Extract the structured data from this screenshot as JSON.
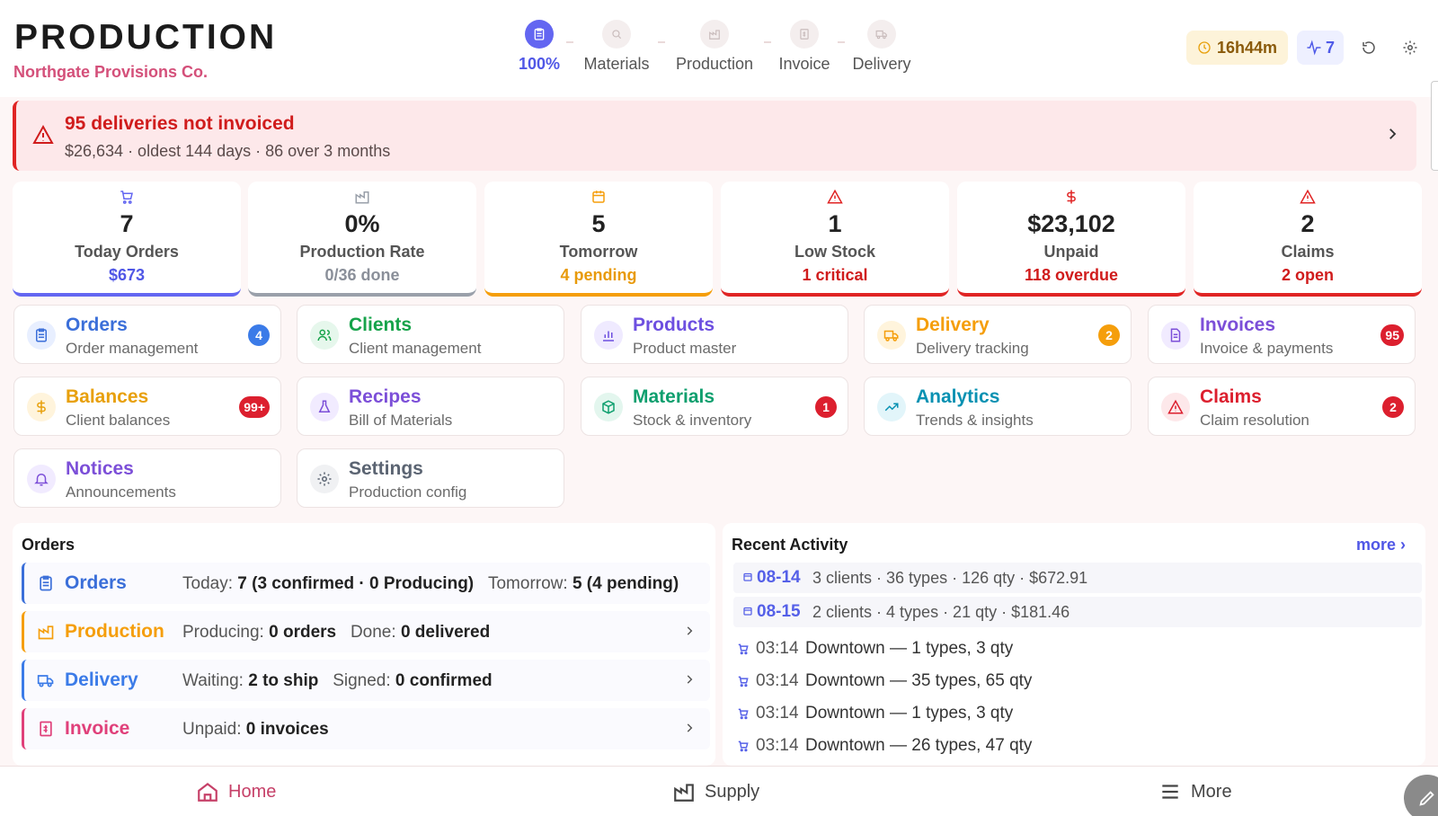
{
  "header": {
    "title": "PRODUCTION",
    "company": "Northgate Provisions Co.",
    "steps": [
      {
        "label": "100%",
        "icon": "clipboard-icon",
        "active": true
      },
      {
        "label": "Materials",
        "icon": "search-icon",
        "active": false
      },
      {
        "label": "Production",
        "icon": "factory-icon",
        "active": false
      },
      {
        "label": "Invoice",
        "icon": "invoice-icon",
        "active": false
      },
      {
        "label": "Delivery",
        "icon": "truck-icon",
        "active": false
      }
    ],
    "timer": "16h44m",
    "activity_count": "7"
  },
  "alert": {
    "title": "95 deliveries not invoiced",
    "subtitle": "$26,634 · oldest 144 days · 86 over 3 months"
  },
  "stats": [
    {
      "value": "7",
      "label": "Today Orders",
      "sub": "$673",
      "color": "#6366f1",
      "sub_color": "#5057e6",
      "icon": "cart-icon"
    },
    {
      "value": "0%",
      "label": "Production Rate",
      "sub": "0/36 done",
      "color": "#9aa0aa",
      "sub_color": "#8a8f99",
      "icon": "factory-icon"
    },
    {
      "value": "5",
      "label": "Tomorrow",
      "sub": "4 pending",
      "color": "#f59e0b",
      "sub_color": "#e89a0a",
      "icon": "calendar-icon"
    },
    {
      "value": "1",
      "label": "Low Stock",
      "sub": "1 critical",
      "color": "#e02424",
      "sub_color": "#d01c1c",
      "icon": "warning-icon"
    },
    {
      "value": "$23,102",
      "label": "Unpaid",
      "sub": "118 overdue",
      "color": "#e02424",
      "sub_color": "#d01c1c",
      "icon": "dollar-icon"
    },
    {
      "value": "2",
      "label": "Claims",
      "sub": "2 open",
      "color": "#e02424",
      "sub_color": "#d01c1c",
      "icon": "warning-icon"
    }
  ],
  "modules": [
    {
      "title": "Orders",
      "sub": "Order management",
      "color": "#3b6fd9",
      "badge": "4",
      "badge_color": "#3b7be8",
      "icon": "clipboard-icon"
    },
    {
      "title": "Clients",
      "sub": "Client management",
      "color": "#16a34a",
      "badge": "",
      "badge_color": "",
      "icon": "users-icon"
    },
    {
      "title": "Products",
      "sub": "Product master",
      "color": "#6d4fe0",
      "badge": "",
      "badge_color": "",
      "icon": "bar-chart-icon"
    },
    {
      "title": "Delivery",
      "sub": "Delivery tracking",
      "color": "#f59e0b",
      "badge": "2",
      "badge_color": "#f59e0b",
      "icon": "truck-icon"
    },
    {
      "title": "Invoices",
      "sub": "Invoice & payments",
      "color": "#7c4fd8",
      "badge": "95",
      "badge_color": "#dc1f2e",
      "icon": "document-icon"
    },
    {
      "title": "Balances",
      "sub": "Client balances",
      "color": "#e8a00c",
      "badge": "99+",
      "badge_color": "#dc1f2e",
      "icon": "dollar-icon"
    },
    {
      "title": "Recipes",
      "sub": "Bill of Materials",
      "color": "#7c4fd8",
      "badge": "",
      "badge_color": "",
      "icon": "flask-icon"
    },
    {
      "title": "Materials",
      "sub": "Stock & inventory",
      "color": "#0e9f6e",
      "badge": "1",
      "badge_color": "#dc1f2e",
      "icon": "box-icon"
    },
    {
      "title": "Analytics",
      "sub": "Trends & insights",
      "color": "#0891b2",
      "badge": "",
      "badge_color": "",
      "icon": "trend-icon"
    },
    {
      "title": "Claims",
      "sub": "Claim resolution",
      "color": "#dc1f2e",
      "badge": "2",
      "badge_color": "#dc1f2e",
      "icon": "warning-icon"
    },
    {
      "title": "Notices",
      "sub": "Announcements",
      "color": "#7c4fd8",
      "badge": "",
      "badge_color": "",
      "icon": "bell-icon"
    },
    {
      "title": "Settings",
      "sub": "Production config",
      "color": "#5b6472",
      "badge": "",
      "badge_color": "",
      "icon": "gear-icon"
    }
  ],
  "orders_panel": {
    "title": "Orders",
    "rows": [
      {
        "name": "Orders",
        "color": "#3b6fd9",
        "k1": "Today: ",
        "v1": "7 (3 confirmed · 0 Producing)",
        "k2": "Tomorrow: ",
        "v2": "5 (4 pending)"
      },
      {
        "name": "Production",
        "color": "#f59e0b",
        "k1": "Producing: ",
        "v1": "0 orders",
        "k2": "Done: ",
        "v2": "0 delivered"
      },
      {
        "name": "Delivery",
        "color": "#3b7be8",
        "k1": "Waiting: ",
        "v1": "2 to ship",
        "k2": "Signed: ",
        "v2": "0 confirmed"
      },
      {
        "name": "Invoice",
        "color": "#e0407a",
        "k1": "Unpaid: ",
        "v1": "0 invoices",
        "k2": "",
        "v2": ""
      }
    ]
  },
  "activity_panel": {
    "title": "Recent Activity",
    "more": "more ›",
    "days": [
      {
        "date": "08-14",
        "summary": "3 clients · 36 types · 126 qty · $672.91"
      },
      {
        "date": "08-15",
        "summary": "2 clients · 4 types · 21 qty · $181.46"
      }
    ],
    "items": [
      {
        "time": "03:14",
        "text": "Downtown — 1 types, 3 qty"
      },
      {
        "time": "03:14",
        "text": "Downtown — 35 types, 65 qty"
      },
      {
        "time": "03:14",
        "text": "Downtown — 1 types, 3 qty"
      },
      {
        "time": "03:14",
        "text": "Downtown — 26 types, 47 qty"
      }
    ]
  },
  "bottom_nav": {
    "home": "Home",
    "supply": "Supply",
    "more": "More"
  }
}
